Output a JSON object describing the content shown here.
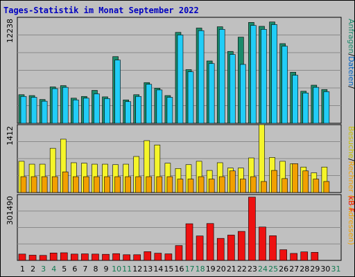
{
  "title": "Tages-Statistik im Monat September 2022",
  "colors": {
    "background": "#c0c0c0",
    "title": "#0000c0",
    "anfragen": "#1b8a6a",
    "dateien": "#21cdf7",
    "rechner": "#f2a000",
    "besuche": "#f5f52a",
    "kb": "#ee1111",
    "weekend_day_label": "#107a50",
    "weekday_label": "#000000"
  },
  "legend": {
    "top_anfragen": "Anfragen",
    "top_sep1": "/",
    "top_dateien": "Dateien",
    "top_sep2": "/",
    "mid_besuche": "Besuche",
    "mid_sep": "/",
    "mid_rechner": "Rechner (IP-Adressen)",
    "bottom": "kB F"
  },
  "chart_data": [
    {
      "type": "bar",
      "title": "Tages-Statistik im Monat September 2022",
      "ylabel": "12238",
      "ymax": 12238,
      "categories": [
        "1",
        "2",
        "3",
        "4",
        "5",
        "6",
        "7",
        "8",
        "9",
        "10",
        "11",
        "12",
        "13",
        "14",
        "15",
        "16",
        "17",
        "18",
        "19",
        "20",
        "21",
        "22",
        "23",
        "24",
        "25",
        "26",
        "27",
        "28",
        "29",
        "30",
        "31"
      ],
      "weekend": [
        "3",
        "4",
        "10",
        "11",
        "17",
        "18",
        "24",
        "25",
        "31"
      ],
      "series": [
        {
          "name": "Anfragen",
          "values": [
            3300,
            3200,
            2750,
            4200,
            4350,
            2900,
            3100,
            3800,
            3050,
            7700,
            2700,
            3300,
            4700,
            4050,
            3200,
            10500,
            6200,
            11000,
            7200,
            11150,
            8300,
            9950,
            11650,
            11200,
            11700,
            9200,
            5900,
            3700,
            4400,
            3900,
            0
          ]
        },
        {
          "name": "Dateien",
          "values": [
            3100,
            3000,
            2550,
            4000,
            4150,
            2700,
            2900,
            3400,
            2850,
            7300,
            2500,
            3100,
            4500,
            3850,
            3000,
            10200,
            5950,
            10700,
            6900,
            10850,
            7950,
            6800,
            11300,
            10850,
            11400,
            8900,
            5550,
            3500,
            4150,
            3650,
            0
          ]
        }
      ]
    },
    {
      "type": "bar",
      "ylabel": "1412",
      "ymax": 1412,
      "categories": [
        "1",
        "2",
        "3",
        "4",
        "5",
        "6",
        "7",
        "8",
        "9",
        "10",
        "11",
        "12",
        "13",
        "14",
        "15",
        "16",
        "17",
        "18",
        "19",
        "20",
        "21",
        "22",
        "23",
        "24",
        "25",
        "26",
        "27",
        "28",
        "29",
        "30",
        "31"
      ],
      "series": [
        {
          "name": "Besuche",
          "values": [
            650,
            590,
            590,
            920,
            1110,
            620,
            610,
            590,
            590,
            580,
            590,
            750,
            1080,
            990,
            610,
            500,
            580,
            650,
            460,
            620,
            510,
            510,
            720,
            1412,
            730,
            650,
            600,
            530,
            410,
            530,
            0
          ]
        },
        {
          "name": "Rechner (IP-Adressen)",
          "values": [
            330,
            330,
            330,
            330,
            430,
            330,
            330,
            330,
            330,
            330,
            330,
            330,
            330,
            330,
            330,
            280,
            280,
            330,
            280,
            330,
            450,
            280,
            330,
            230,
            460,
            290,
            600,
            450,
            280,
            230,
            0
          ]
        }
      ]
    },
    {
      "type": "bar",
      "ylabel": "301490",
      "ymax": 301490,
      "categories": [
        "1",
        "2",
        "3",
        "4",
        "5",
        "6",
        "7",
        "8",
        "9",
        "10",
        "11",
        "12",
        "13",
        "14",
        "15",
        "16",
        "17",
        "18",
        "19",
        "20",
        "21",
        "22",
        "23",
        "24",
        "25",
        "26",
        "27",
        "28",
        "29",
        "30",
        "31"
      ],
      "series": [
        {
          "name": "kB F",
          "values": [
            29000,
            24000,
            23000,
            34000,
            35000,
            29000,
            30000,
            29000,
            28000,
            31000,
            26000,
            26000,
            40000,
            33000,
            30000,
            68000,
            168000,
            112000,
            169000,
            101000,
            116000,
            133000,
            290000,
            153000,
            113000,
            49000,
            32000,
            39000,
            37000,
            0,
            0
          ]
        }
      ]
    }
  ]
}
